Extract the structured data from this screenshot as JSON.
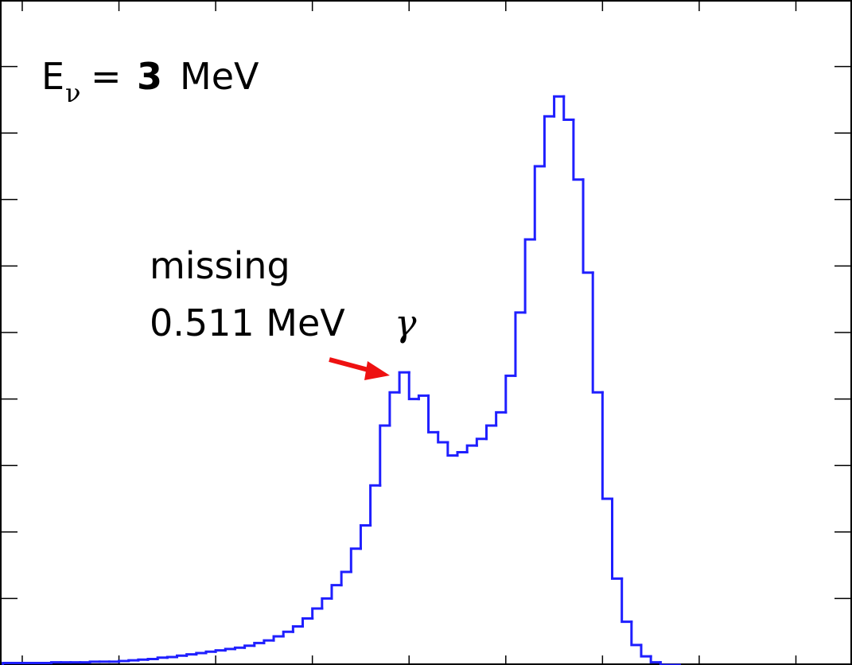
{
  "chart_data": {
    "type": "histogram",
    "annotations": {
      "energy": [
        "E",
        "ν",
        "=",
        "3",
        "MeV"
      ],
      "missing": "missing",
      "gamma": [
        "0.511 MeV",
        "γ"
      ]
    },
    "bins": [
      -0.2,
      -0.1,
      0,
      0.1,
      0.2,
      0.3,
      0.4,
      0.5,
      0.6,
      0.7,
      0.8,
      0.9,
      1,
      1.1,
      1.2,
      1.3,
      1.4,
      1.5,
      1.6,
      1.7,
      1.8,
      1.9,
      2,
      2.1,
      2.2,
      2.3,
      2.4,
      2.5,
      2.6,
      2.7,
      2.8,
      2.9,
      3,
      3.1,
      3.2,
      3.3,
      3.4,
      3.5,
      3.6,
      3.7,
      3.8,
      3.9,
      4,
      4.1,
      4.2,
      4.3,
      4.4,
      4.5,
      4.6,
      4.7,
      4.8,
      4.9,
      5,
      5.1,
      5.2,
      5.3,
      5.4,
      5.5,
      5.6,
      5.7,
      5.8,
      5.9,
      6,
      6.1,
      6.2,
      6.3,
      6.4,
      6.5,
      6.6,
      6.7,
      6.8
    ],
    "values": [
      0.03,
      0.03,
      0.03,
      0.03,
      0.03,
      0.04,
      0.04,
      0.04,
      0.04,
      0.05,
      0.05,
      0.05,
      0.06,
      0.07,
      0.08,
      0.09,
      0.11,
      0.12,
      0.14,
      0.16,
      0.18,
      0.2,
      0.22,
      0.24,
      0.26,
      0.29,
      0.33,
      0.37,
      0.43,
      0.5,
      0.58,
      0.7,
      0.85,
      1.0,
      1.2,
      1.4,
      1.75,
      2.1,
      2.7,
      3.6,
      4.1,
      4.4,
      4.0,
      4.05,
      3.5,
      3.35,
      3.15,
      3.2,
      3.3,
      3.4,
      3.6,
      3.8,
      4.35,
      5.3,
      6.4,
      7.5,
      8.25,
      8.55,
      8.2,
      7.3,
      5.9,
      4.1,
      2.5,
      1.3,
      0.65,
      0.3,
      0.13,
      0.04,
      0,
      0
    ],
    "color": "#1f1fff",
    "xlim": [
      -0.23,
      8.58
    ],
    "xticks": [
      0,
      1,
      2,
      3,
      4,
      5,
      6,
      7,
      8
    ],
    "ylim": [
      0,
      10
    ],
    "yticks": [
      1,
      2,
      3,
      4,
      5,
      6,
      7,
      8,
      9
    ]
  }
}
